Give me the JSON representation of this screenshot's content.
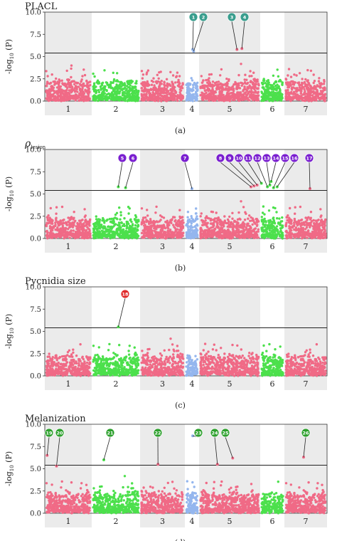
{
  "figure": {
    "colors": {
      "chr_a": "#f06a86",
      "chr_b": "#4ce04c",
      "chr_c": "#94b6ee",
      "band": "#ebebeb",
      "threshold": "#222222"
    },
    "chromosome_labels": [
      "1",
      "2",
      "3",
      "4",
      "5",
      "6",
      "7"
    ],
    "y_axis_label": "-log10 (P)",
    "y_ticks": [
      "0.0",
      "2.5",
      "5.0",
      "7.5",
      "10.0"
    ]
  },
  "chart_data": [
    {
      "type": "scatter",
      "subtype": "manhattan",
      "title": "PLACL",
      "caption": "(a)",
      "ylabel": "-log10 (P)",
      "ylim": [
        0,
        10
      ],
      "threshold": 5.4,
      "marker_color": "#3a9e8e",
      "markers": [
        {
          "label": "1",
          "chr": 4,
          "pos": 0.55,
          "peak": 5.8
        },
        {
          "label": "2",
          "chr": 4,
          "pos": 0.62,
          "peak": 5.6
        },
        {
          "label": "3",
          "chr": 5,
          "pos": 0.62,
          "peak": 5.8
        },
        {
          "label": "4",
          "chr": 5,
          "pos": 0.7,
          "peak": 5.9
        }
      ]
    },
    {
      "type": "scatter",
      "subtype": "manhattan",
      "title": "ρlesion",
      "title_main": "ρ",
      "title_sub": "lesion",
      "caption": "(b)",
      "ylabel": "-log10 (P)",
      "ylim": [
        0,
        10
      ],
      "threshold": 5.4,
      "marker_color": "#7a1fd0",
      "markers": [
        {
          "label": "5",
          "chr": 2,
          "pos": 0.55,
          "peak": 5.8
        },
        {
          "label": "6",
          "chr": 2,
          "pos": 0.7,
          "peak": 5.7
        },
        {
          "label": "7",
          "chr": 4,
          "pos": 0.5,
          "peak": 5.6
        },
        {
          "label": "8",
          "chr": 5,
          "pos": 0.85,
          "peak": 5.8
        },
        {
          "label": "9",
          "chr": 5,
          "pos": 0.9,
          "peak": 5.9
        },
        {
          "label": "10",
          "chr": 5,
          "pos": 0.95,
          "peak": 6.0
        },
        {
          "label": "11",
          "chr": 6,
          "pos": 0.05,
          "peak": 6.2
        },
        {
          "label": "12",
          "chr": 6,
          "pos": 0.3,
          "peak": 5.8
        },
        {
          "label": "13",
          "chr": 6,
          "pos": 0.4,
          "peak": 6.0
        },
        {
          "label": "14",
          "chr": 6,
          "pos": 0.45,
          "peak": 6.4
        },
        {
          "label": "15",
          "chr": 6,
          "pos": 0.55,
          "peak": 5.7
        },
        {
          "label": "16",
          "chr": 6,
          "pos": 0.7,
          "peak": 5.8
        },
        {
          "label": "17",
          "chr": 7,
          "pos": 0.6,
          "peak": 5.6
        }
      ]
    },
    {
      "type": "scatter",
      "subtype": "manhattan",
      "title": "Pycnidia size",
      "caption": "(c)",
      "ylabel": "-log10 (P)",
      "ylim": [
        0,
        10
      ],
      "threshold": 5.4,
      "marker_color": "#e02a2a",
      "markers": [
        {
          "label": "18",
          "chr": 2,
          "pos": 0.55,
          "peak": 5.5
        }
      ]
    },
    {
      "type": "scatter",
      "subtype": "manhattan",
      "title": "Melanization",
      "caption": "(d)",
      "ylabel": "-log10 (P)",
      "ylim": [
        0,
        10
      ],
      "threshold": 5.4,
      "marker_color": "#2ea02e",
      "markers": [
        {
          "label": "19",
          "chr": 1,
          "pos": 0.05,
          "peak": 6.5
        },
        {
          "label": "20",
          "chr": 1,
          "pos": 0.25,
          "peak": 5.3
        },
        {
          "label": "21",
          "chr": 2,
          "pos": 0.25,
          "peak": 6.0
        },
        {
          "label": "22",
          "chr": 3,
          "pos": 0.4,
          "peak": 5.5
        },
        {
          "label": "23",
          "chr": 4,
          "pos": 0.55,
          "peak": 8.7
        },
        {
          "label": "24",
          "chr": 5,
          "pos": 0.3,
          "peak": 5.5
        },
        {
          "label": "25",
          "chr": 5,
          "pos": 0.55,
          "peak": 6.2
        },
        {
          "label": "26",
          "chr": 7,
          "pos": 0.45,
          "peak": 6.3
        }
      ]
    }
  ]
}
